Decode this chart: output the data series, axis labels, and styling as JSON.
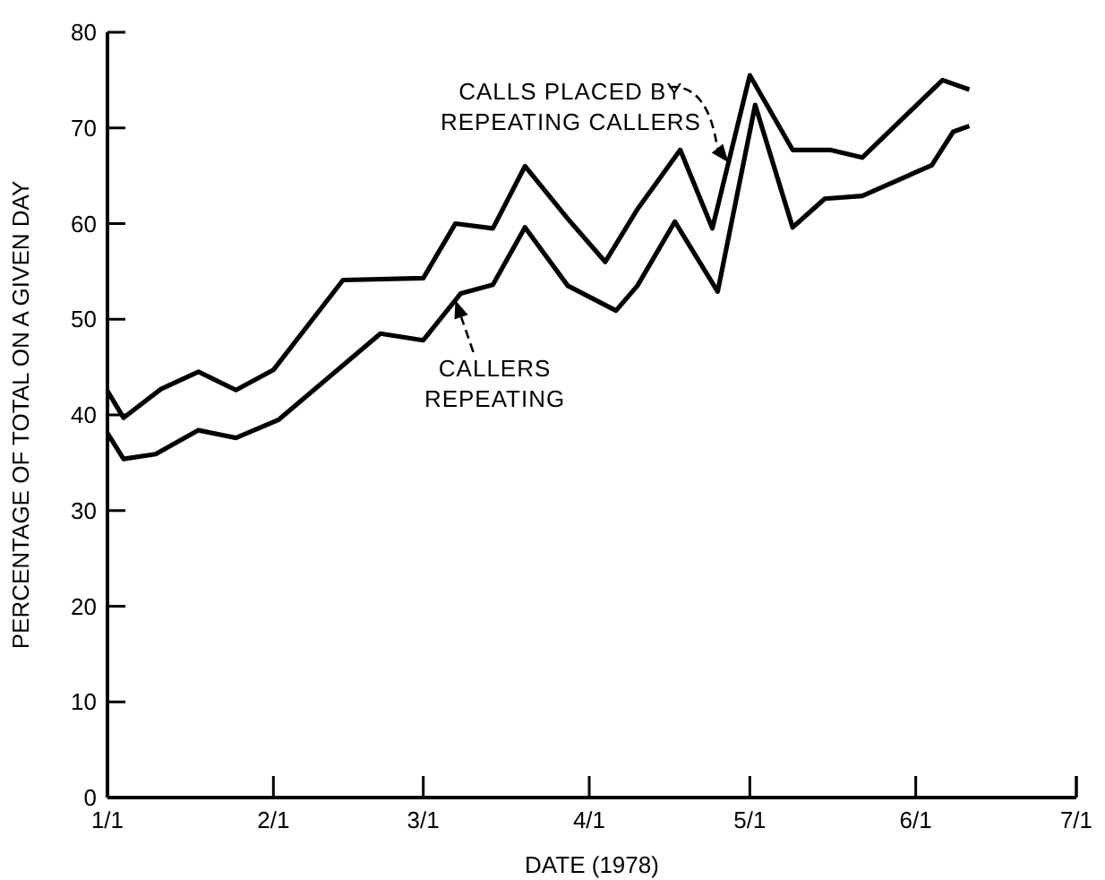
{
  "chart_data": {
    "type": "line",
    "xlabel": "DATE (1978)",
    "ylabel": "PERCENTAGE OF TOTAL ON A GIVEN DAY",
    "xlim": [
      "1978-01-01",
      "1978-07-01"
    ],
    "xticks": [
      {
        "value": "1978-01-01",
        "label": "1/1"
      },
      {
        "value": "1978-02-01",
        "label": "2/1"
      },
      {
        "value": "1978-03-01",
        "label": "3/1"
      },
      {
        "value": "1978-04-01",
        "label": "4/1"
      },
      {
        "value": "1978-05-01",
        "label": "5/1"
      },
      {
        "value": "1978-06-01",
        "label": "6/1"
      },
      {
        "value": "1978-07-01",
        "label": "7/1"
      }
    ],
    "ylim": [
      0,
      80
    ],
    "yticks": [
      0,
      10,
      20,
      30,
      40,
      50,
      60,
      70,
      80
    ],
    "grid": false,
    "marker": "none",
    "line_style": "solid",
    "series": [
      {
        "color": "#000000",
        "x": [
          "1978-01-01",
          "1978-01-04",
          "1978-01-11",
          "1978-01-18",
          "1978-01-25",
          "1978-02-01",
          "1978-02-14",
          "1978-03-01",
          "1978-03-07",
          "1978-03-14",
          "1978-03-20",
          "1978-03-28",
          "1978-04-04",
          "1978-04-10",
          "1978-04-18",
          "1978-04-24",
          "1978-05-01",
          "1978-05-09",
          "1978-05-16",
          "1978-05-22",
          "1978-06-06",
          "1978-06-11"
        ],
        "values": [
          42.5,
          39.7,
          42.7,
          44.5,
          42.6,
          44.7,
          54.1,
          54.3,
          60.0,
          59.5,
          66.0,
          60.5,
          56.0,
          61.5,
          67.7,
          59.5,
          75.5,
          67.7,
          67.7,
          66.9,
          75.0,
          74.0
        ]
      },
      {
        "color": "#000000",
        "x": [
          "1978-01-01",
          "1978-01-04",
          "1978-01-10",
          "1978-01-18",
          "1978-01-25",
          "1978-02-02",
          "1978-02-21",
          "1978-03-01",
          "1978-03-08",
          "1978-03-14",
          "1978-03-20",
          "1978-03-28",
          "1978-04-06",
          "1978-04-10",
          "1978-04-17",
          "1978-04-25",
          "1978-05-02",
          "1978-05-09",
          "1978-05-15",
          "1978-05-22",
          "1978-06-04",
          "1978-06-08",
          "1978-06-11"
        ],
        "values": [
          38.1,
          35.4,
          35.9,
          38.4,
          37.6,
          39.5,
          48.5,
          47.8,
          52.7,
          53.6,
          59.6,
          53.5,
          50.9,
          53.5,
          60.2,
          52.9,
          72.4,
          59.6,
          62.6,
          62.9,
          66.1,
          69.6,
          70.2
        ]
      }
    ],
    "annotations": [
      {
        "text": "CALLS PLACED BY\nREPEATING CALLERS",
        "x": "1978-04-27",
        "y": 66.4
      },
      {
        "text": "CALLERS\nREPEATING",
        "x": "1978-03-07",
        "y": 52.0
      }
    ]
  }
}
